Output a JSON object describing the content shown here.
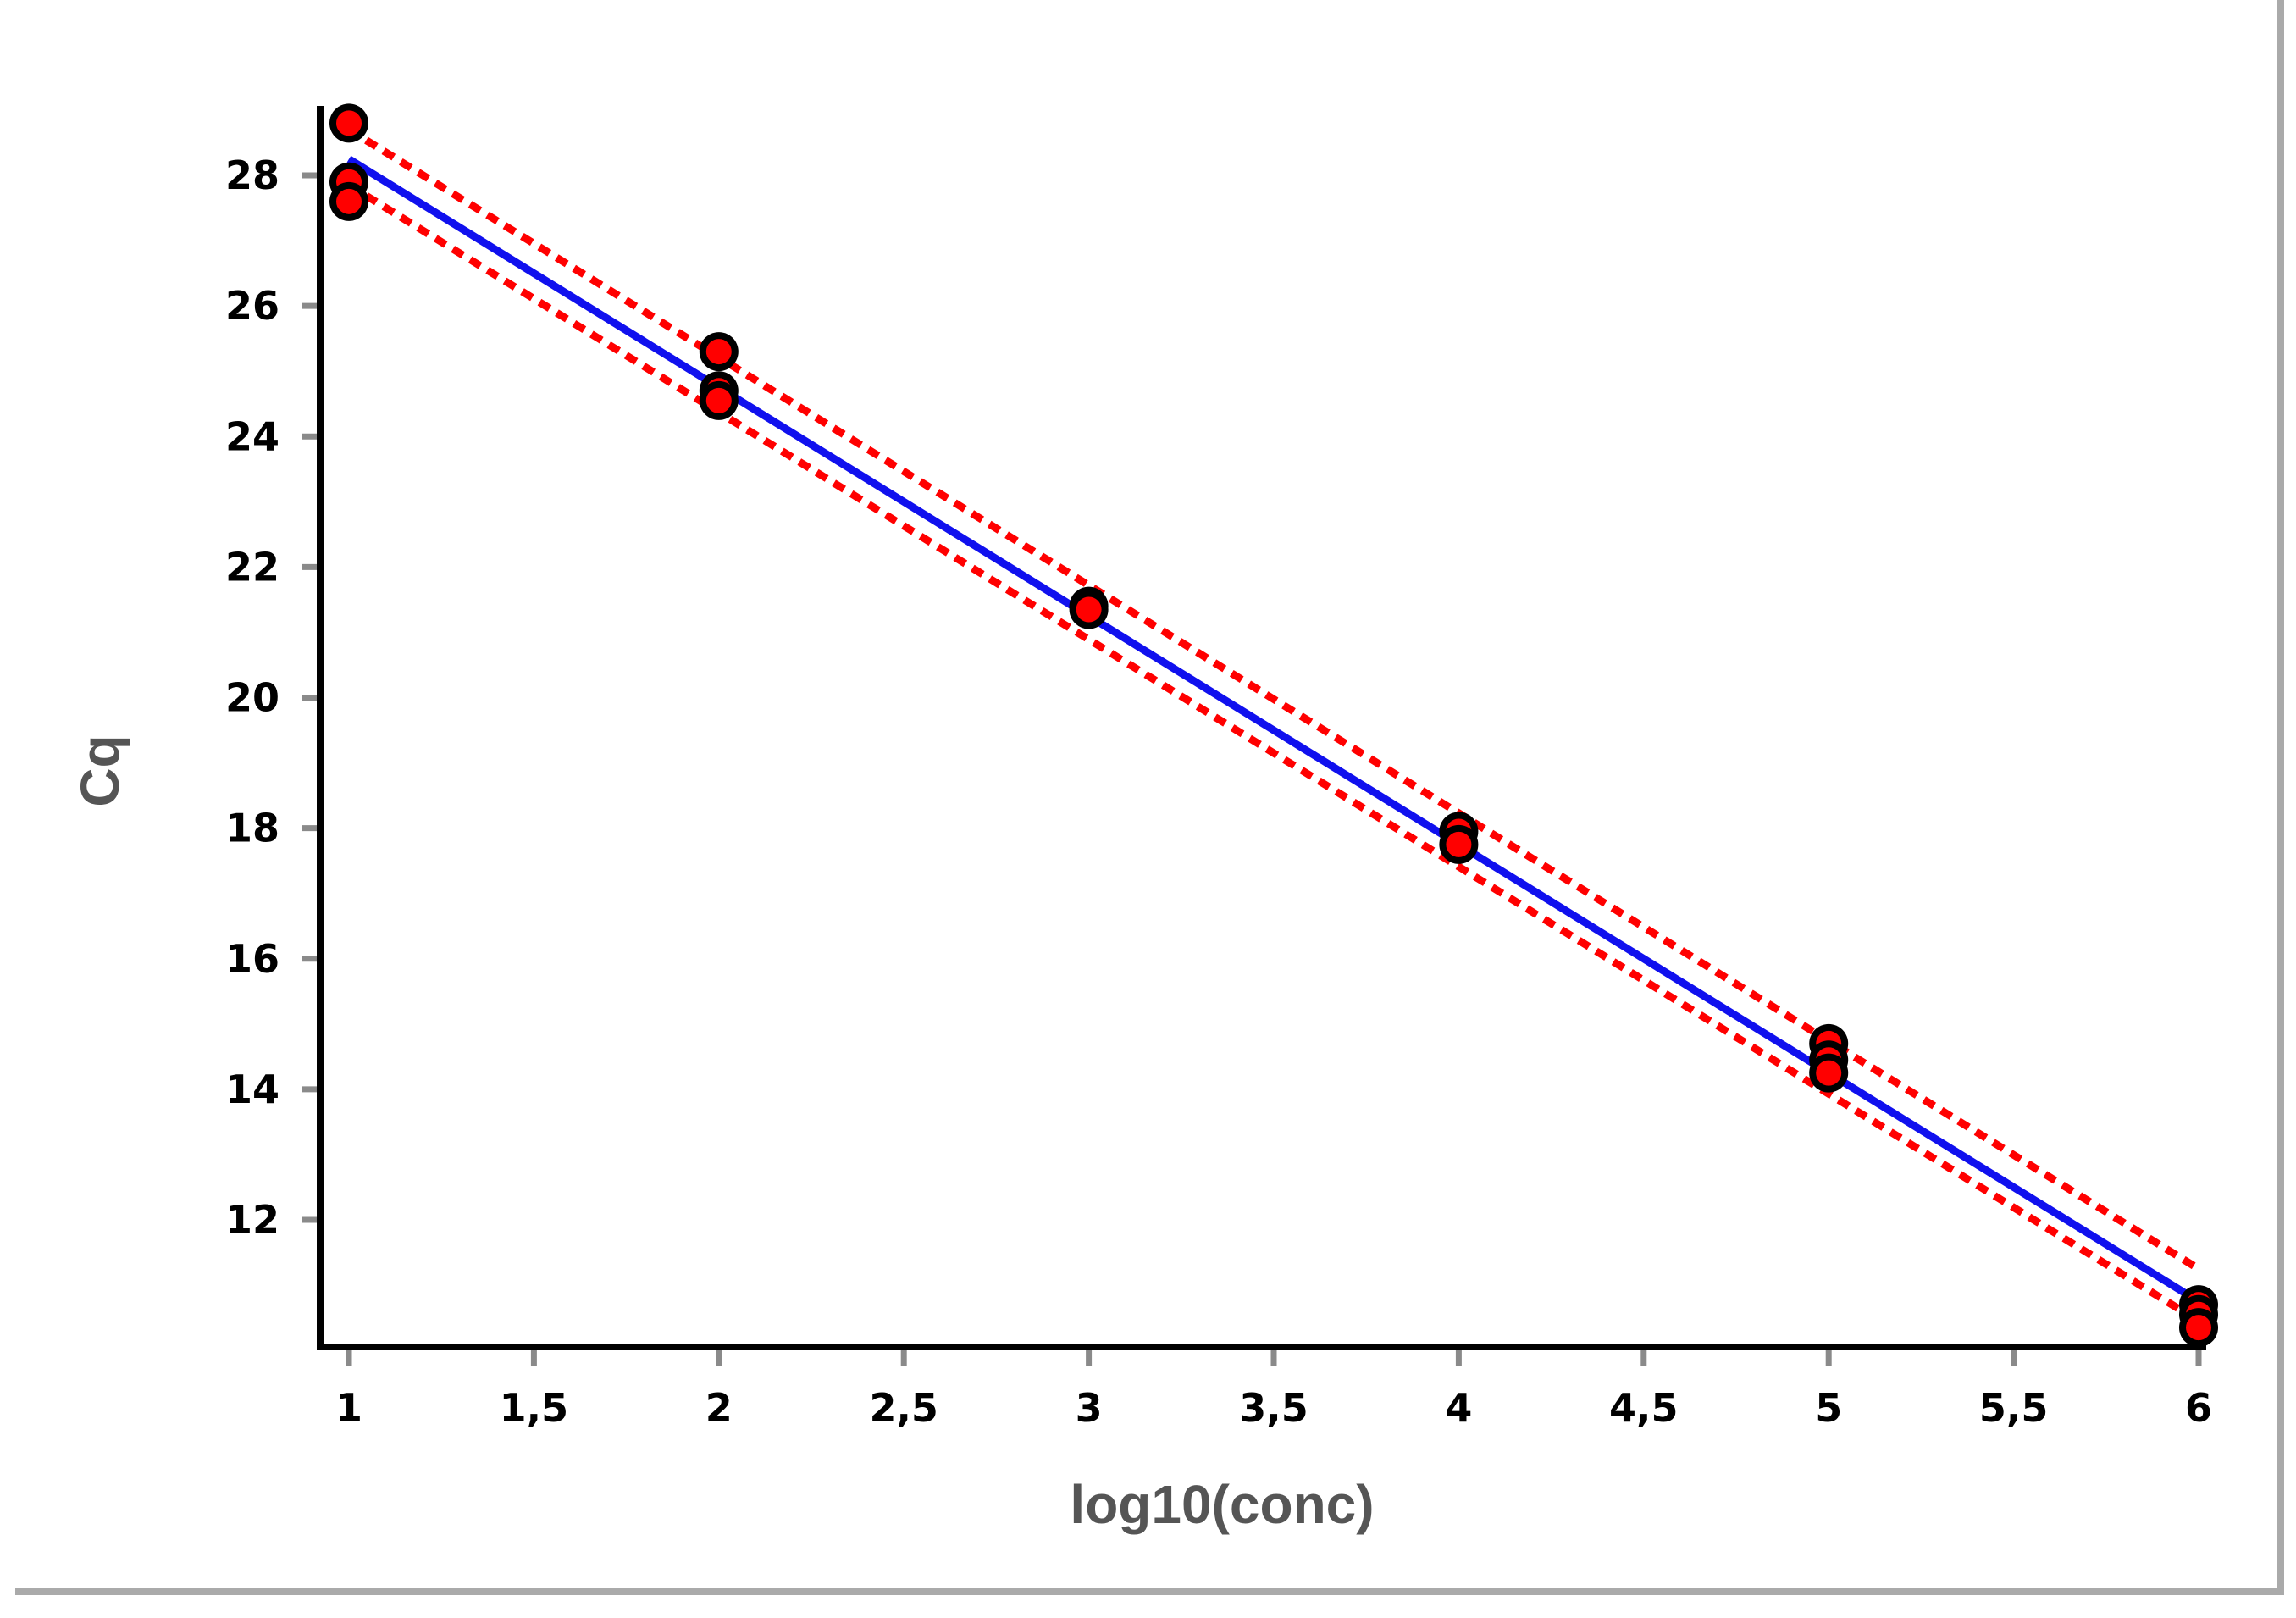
{
  "chart_data": {
    "type": "scatter",
    "title": "",
    "xlabel": "log10(conc)",
    "ylabel": "Cq",
    "xlim": [
      0.95,
      6.05
    ],
    "ylim": [
      10,
      29.2
    ],
    "x_ticks": [
      1,
      1.5,
      2,
      2.5,
      3,
      3.5,
      4,
      4.5,
      5,
      5.5,
      6
    ],
    "x_tick_labels": [
      "1",
      "1,5",
      "2",
      "2,5",
      "3",
      "3,5",
      "4",
      "4,5",
      "5",
      "5,5",
      "6"
    ],
    "y_ticks": [
      12,
      14,
      16,
      18,
      20,
      22,
      24,
      26,
      28
    ],
    "y_tick_labels": [
      "12",
      "14",
      "16",
      "18",
      "20",
      "22",
      "24",
      "26",
      "28"
    ],
    "grid": false,
    "legend": "none",
    "points": [
      {
        "x": 1,
        "y": 28.8
      },
      {
        "x": 1,
        "y": 27.9
      },
      {
        "x": 1,
        "y": 27.6
      },
      {
        "x": 2,
        "y": 25.3
      },
      {
        "x": 2,
        "y": 24.7
      },
      {
        "x": 2,
        "y": 24.55
      },
      {
        "x": 3,
        "y": 21.4
      },
      {
        "x": 3,
        "y": 21.35
      },
      {
        "x": 4,
        "y": 17.95
      },
      {
        "x": 4,
        "y": 17.75
      },
      {
        "x": 5,
        "y": 14.7
      },
      {
        "x": 5,
        "y": 14.45
      },
      {
        "x": 5,
        "y": 14.25
      },
      {
        "x": 6,
        "y": 10.7
      },
      {
        "x": 6,
        "y": 10.55
      },
      {
        "x": 6,
        "y": 10.35
      }
    ],
    "fit": {
      "type": "linear",
      "x": [
        1,
        6
      ],
      "y": [
        28.25,
        10.75
      ]
    },
    "confidence_band": {
      "upper": {
        "x": [
          1,
          6
        ],
        "y": [
          28.7,
          11.25
        ]
      },
      "lower": {
        "x": [
          1,
          6
        ],
        "y": [
          27.85,
          10.45
        ]
      }
    },
    "colors": {
      "fit_line": "#1010ee",
      "confidence_band": "#ff0000",
      "point_fill": "#ff0000",
      "point_outline": "#000000",
      "axis": "#000000",
      "tick_mark": "#8a8a8a",
      "axis_title": "#555555",
      "frame_shadow": "#aaaaaa"
    }
  }
}
